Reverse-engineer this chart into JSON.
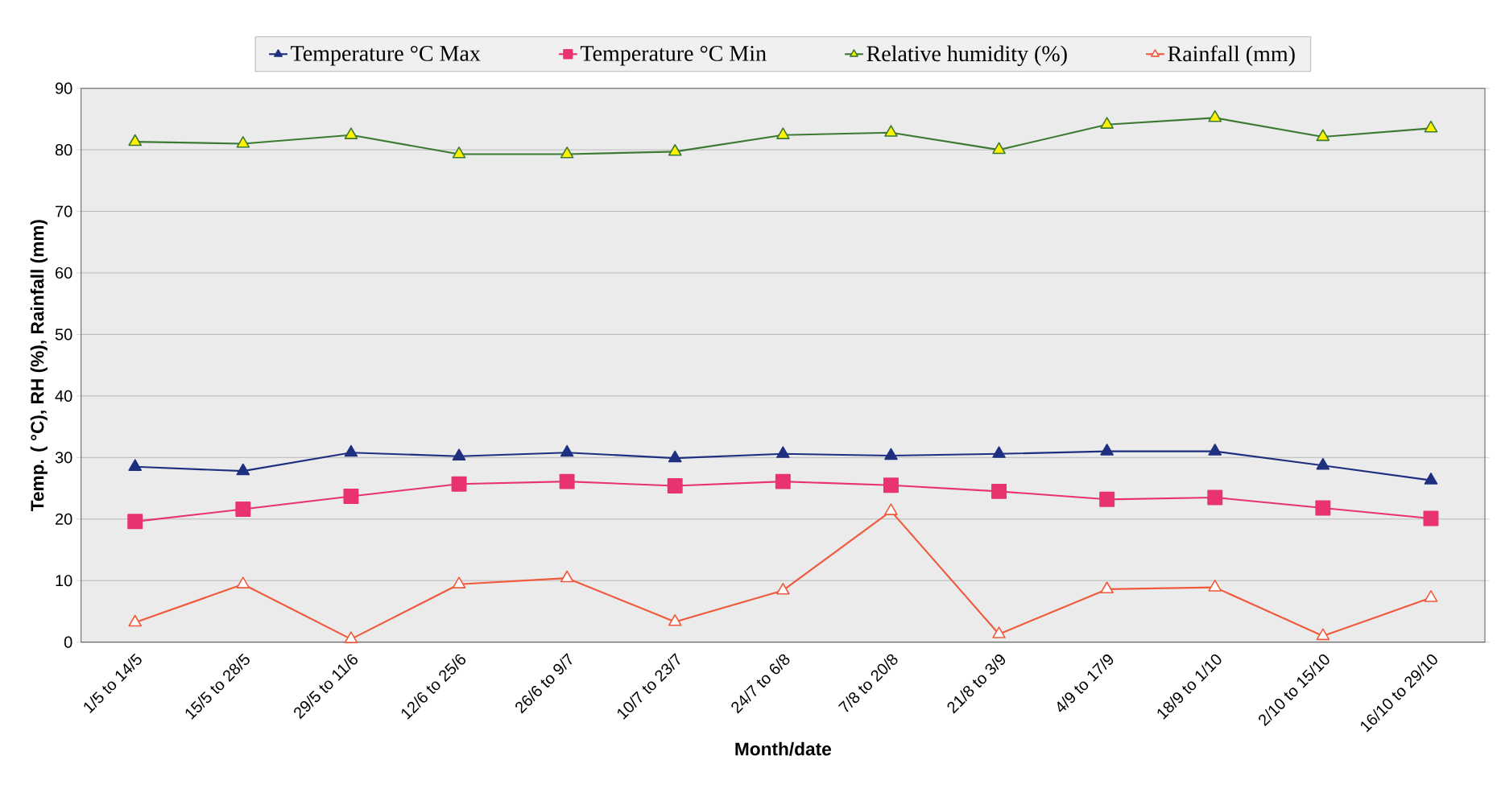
{
  "chart_data": {
    "type": "line",
    "xlabel": "Month/date",
    "ylabel": "Temp. ( °C), RH (%), Rainfall (mm)",
    "categories": [
      "1/5 to 14/5",
      "15/5 to 28/5",
      "29/5 to 11/6",
      "12/6 to 25/6",
      "26/6 to 9/7",
      "10/7 to 23/7",
      "24/7 to 6/8",
      "7/8 to 20/8",
      "21/8 to 3/9",
      "4/9 to 17/9",
      "18/9 to 1/10",
      "2/10 to 15/10",
      "16/10 to 29/10"
    ],
    "series": [
      {
        "name": "Temperature °C Max",
        "color": "#1f2f80",
        "marker": "triangle",
        "values": [
          28.5,
          27.8,
          30.8,
          30.2,
          30.8,
          29.9,
          30.6,
          30.3,
          30.6,
          31.0,
          31.0,
          28.7,
          26.3
        ]
      },
      {
        "name": "Temperature °C Min",
        "color": "#e8336e",
        "marker": "square",
        "values": [
          19.6,
          21.6,
          23.7,
          25.7,
          26.1,
          25.4,
          26.1,
          25.5,
          24.5,
          23.2,
          23.5,
          21.8,
          20.1
        ]
      },
      {
        "name": "Relative humidity (%)",
        "color": "#3c7a32",
        "marker": "triangle",
        "values": [
          81.3,
          81.0,
          82.4,
          79.3,
          79.3,
          79.7,
          82.4,
          82.8,
          80.0,
          84.1,
          85.2,
          82.1,
          83.5
        ]
      },
      {
        "name": "Rainfall (mm)",
        "color": "#f05a3c",
        "marker": "triangle",
        "values": [
          3.2,
          9.4,
          0.5,
          9.4,
          10.4,
          3.3,
          8.4,
          21.3,
          1.3,
          8.6,
          8.9,
          1.0,
          7.2
        ]
      }
    ],
    "ylim": [
      0,
      90
    ],
    "yticks": [
      0,
      10,
      20,
      30,
      40,
      50,
      60,
      70,
      80,
      90
    ],
    "grid": "y",
    "legend": "top",
    "line_style": "solid"
  }
}
